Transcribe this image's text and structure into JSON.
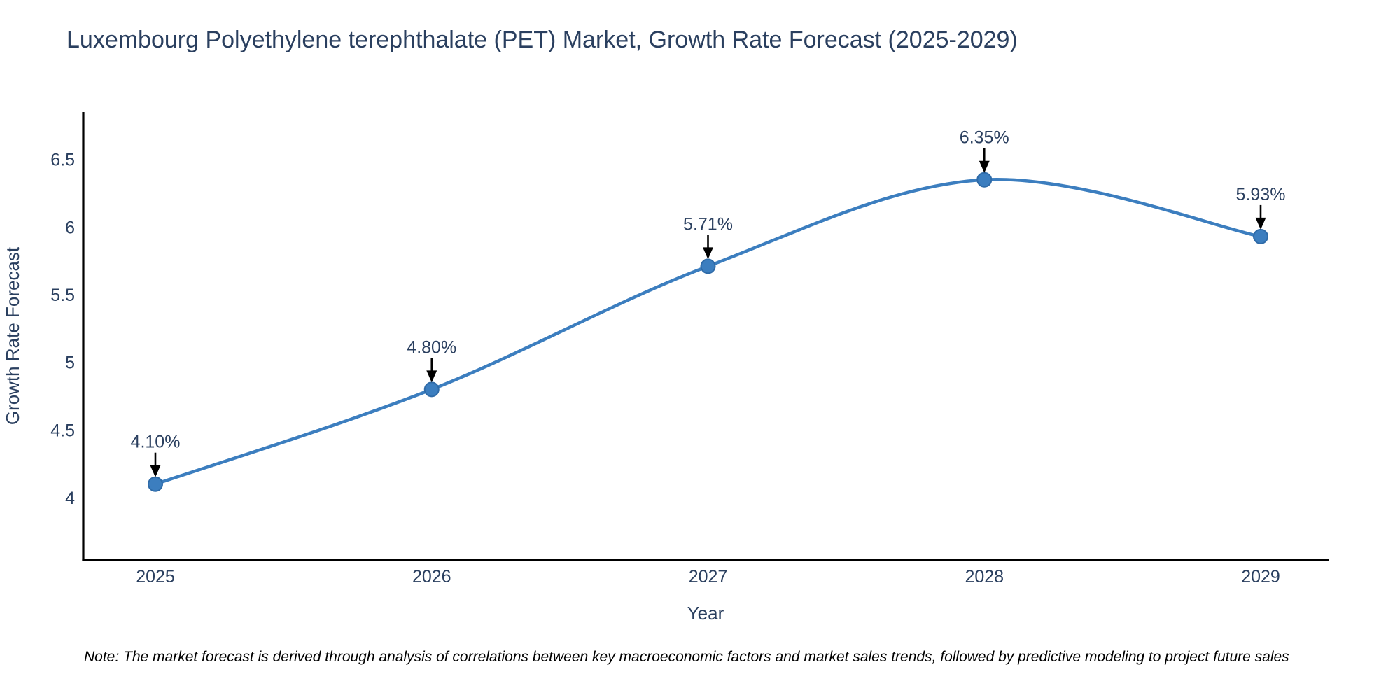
{
  "chart_data": {
    "type": "line",
    "title": "Luxembourg Polyethylene terephthalate (PET) Market, Growth Rate Forecast (2025-2029)",
    "xlabel": "Year",
    "ylabel": "Growth Rate Forecast",
    "categories": [
      "2025",
      "2026",
      "2027",
      "2028",
      "2029"
    ],
    "series": [
      {
        "name": "Growth Rate Forecast",
        "values": [
          4.1,
          4.8,
          5.71,
          6.35,
          5.93
        ],
        "point_labels": [
          "4.10%",
          "4.80%",
          "5.71%",
          "6.35%",
          "5.93%"
        ]
      }
    ],
    "yticks": [
      4,
      4.5,
      5,
      5.5,
      6,
      6.5
    ],
    "ylim": [
      3.54,
      6.85
    ],
    "line_shape": "spline",
    "grid": false,
    "legend_position": "none",
    "annotations_style": "label-with-down-arrow",
    "note": "Note: The market forecast is derived through analysis of correlations between key macroeconomic factors and market sales trends, followed by predictive modeling to project future sales",
    "colors": {
      "line": "#3c7ebf",
      "marker_fill": "#3c7ebf",
      "marker_edge": "#2f6ba8",
      "title_text": "#2a3f5f",
      "tick_text": "#2a3f5f",
      "axis_line": "#000000",
      "annotation_text": "#2a3f5f",
      "arrow": "#000000",
      "note_text": "#000000",
      "background": "#ffffff"
    }
  }
}
